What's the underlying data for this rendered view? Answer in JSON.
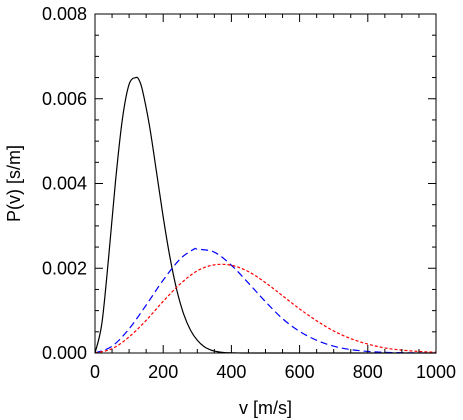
{
  "chart_data": {
    "type": "line",
    "title": "",
    "xlabel": "v [m/s]",
    "ylabel": "P(v) [s/m]",
    "xlim": [
      0,
      1000
    ],
    "ylim": [
      0,
      0.008
    ],
    "x_ticks": [
      0,
      200,
      400,
      600,
      800,
      1000
    ],
    "x_tick_labels": [
      "0",
      "200",
      "400",
      "600",
      "800",
      "1000"
    ],
    "y_ticks": [
      0,
      0.002,
      0.004,
      0.006,
      0.008
    ],
    "y_tick_labels": [
      "0.000",
      "0.002",
      "0.004",
      "0.006",
      "0.008"
    ],
    "grid": false,
    "legend": "none",
    "series": [
      {
        "color": "#000000",
        "style": "solid",
        "x": [
          0,
          20,
          40,
          60,
          80,
          100,
          120,
          130,
          140,
          160,
          180,
          200,
          220,
          240,
          260,
          280,
          300,
          320,
          340,
          360,
          380,
          400,
          420,
          440,
          460,
          500,
          1000
        ],
        "values": [
          0,
          0.00069,
          0.00226,
          0.00404,
          0.0055,
          0.00634,
          0.0065,
          0.00643,
          0.00617,
          0.00535,
          0.00429,
          0.00321,
          0.00225,
          0.00148,
          0.00092,
          0.00054,
          0.0003,
          0.00015,
          7e-05,
          3e-05,
          1e-05,
          5e-06,
          2e-06,
          0,
          0,
          0,
          0
        ]
      },
      {
        "color": "#0000ff",
        "style": "dashed",
        "x": [
          0,
          50,
          100,
          150,
          200,
          250,
          290,
          300,
          350,
          400,
          450,
          500,
          550,
          600,
          650,
          700,
          750,
          800,
          850,
          900,
          950,
          1000
        ],
        "values": [
          0,
          0.00016,
          0.00057,
          0.00113,
          0.00172,
          0.00222,
          0.00245,
          0.00245,
          0.00238,
          0.00207,
          0.00165,
          0.00121,
          0.00081,
          0.00051,
          0.0003,
          0.00016,
          8e-05,
          3.7e-05,
          1.6e-05,
          6e-06,
          2e-06,
          1e-06
        ]
      },
      {
        "color": "#ff0000",
        "style": "dotted",
        "x": [
          0,
          50,
          100,
          150,
          200,
          250,
          300,
          350,
          400,
          450,
          500,
          550,
          600,
          650,
          700,
          750,
          800,
          850,
          900,
          950,
          1000
        ],
        "values": [
          0,
          0.0001,
          0.00038,
          0.00077,
          0.00122,
          0.00163,
          0.00194,
          0.00208,
          0.00207,
          0.00192,
          0.00166,
          0.00135,
          0.00104,
          0.00076,
          0.00052,
          0.00034,
          0.00021,
          0.00012,
          6.8e-05,
          3.6e-05,
          1.8e-05
        ]
      }
    ]
  }
}
